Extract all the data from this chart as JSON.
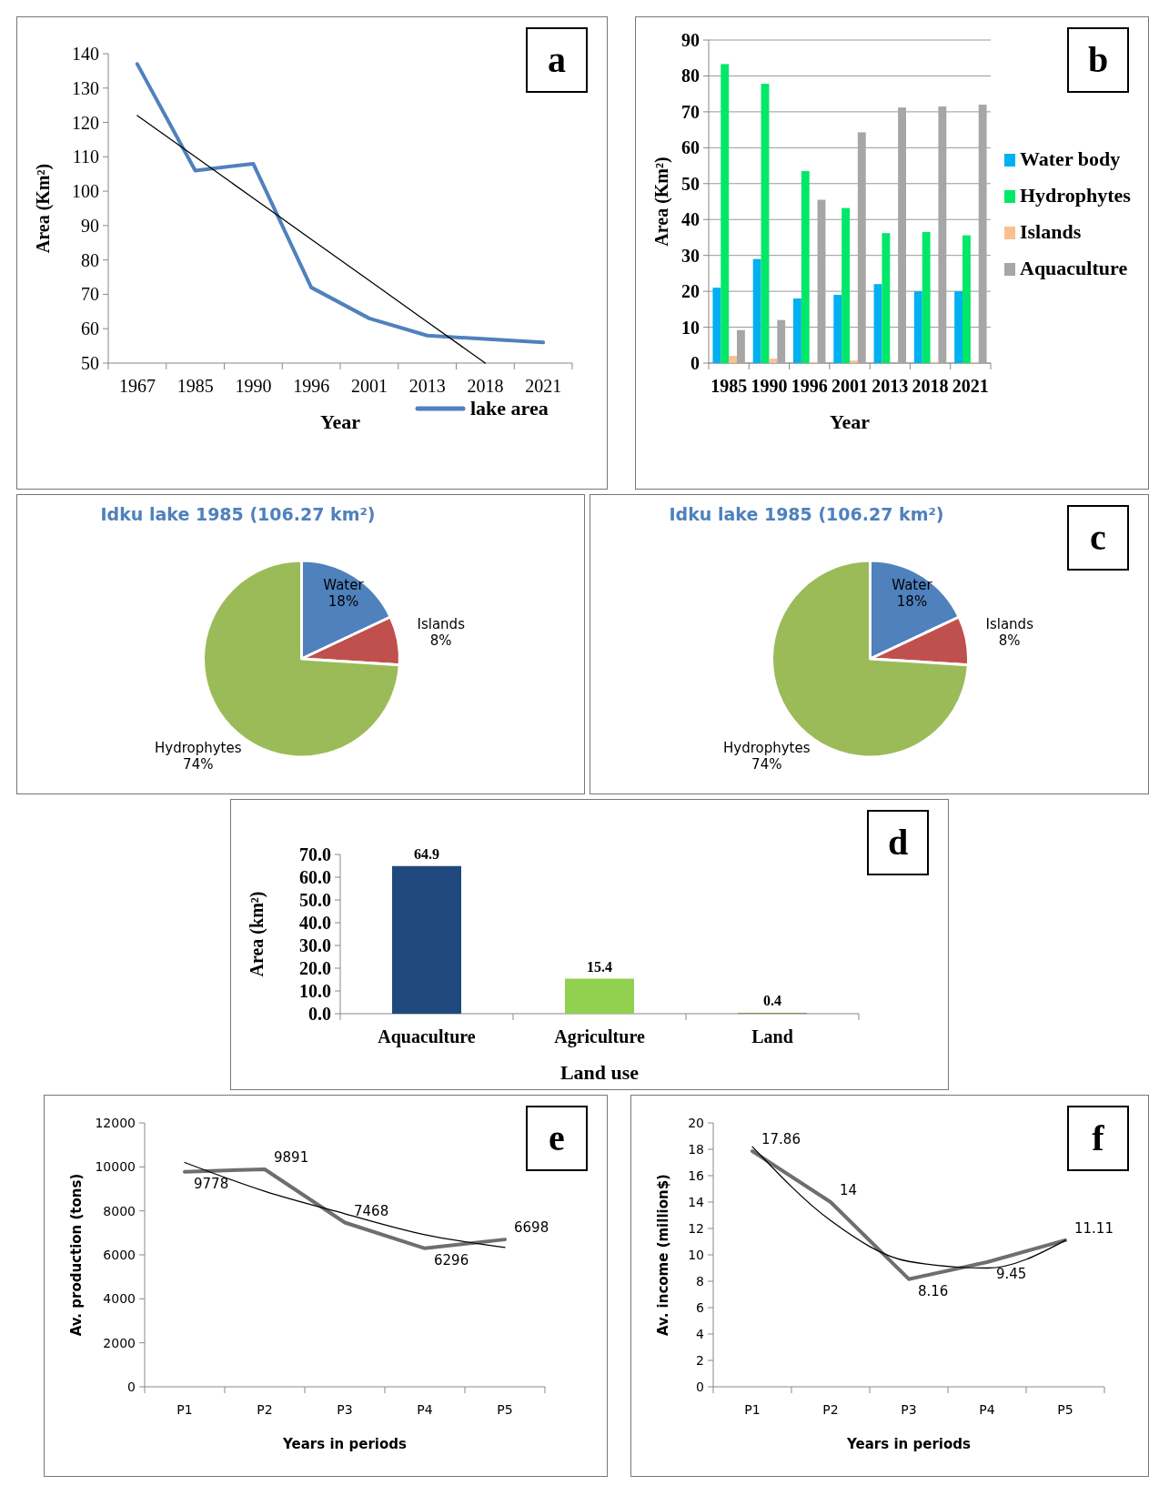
{
  "chart_data": [
    {
      "type": "line",
      "categories": [
        "1967",
        "1985",
        "1990",
        "1996",
        "2001",
        "2013",
        "2018",
        "2021"
      ],
      "xlabel": "Year",
      "ylabel": "Area (Km²)",
      "ylim": [
        50,
        140
      ],
      "yticks": [
        50,
        60,
        70,
        80,
        90,
        100,
        110,
        120,
        130,
        140
      ],
      "legend": "bottom",
      "annotations": [
        "a"
      ],
      "series": [
        {
          "name": "lake area",
          "color": "#4f81bd",
          "values": [
            137,
            106,
            108,
            72,
            63,
            58,
            57,
            56
          ]
        },
        {
          "color": "#000000",
          "values": [
            122,
            110,
            98,
            86,
            74,
            62,
            50,
            null
          ]
        }
      ]
    },
    {
      "type": "bar",
      "categories": [
        "1985",
        "1990",
        "1996",
        "2001",
        "2013",
        "2018",
        "2021"
      ],
      "xlabel": "Year",
      "ylabel": "Area (Km²)",
      "ylim": [
        0,
        90
      ],
      "yticks": [
        0,
        10,
        20,
        30,
        40,
        50,
        60,
        70,
        80,
        90
      ],
      "grid": "y",
      "legend": "right",
      "annotations": [
        "b"
      ],
      "series": [
        {
          "name": "Water body",
          "color": "#00b0f0",
          "values": [
            21,
            29,
            18,
            19,
            22,
            20,
            20
          ]
        },
        {
          "name": "Hydrophytes",
          "color": "#00e868",
          "values": [
            83.3,
            77.8,
            53.5,
            43.2,
            36.2,
            36.5,
            35.6
          ]
        },
        {
          "name": "Islands",
          "color": "#fac090",
          "values": [
            2,
            1.2,
            0.3,
            0.7,
            0,
            0.3,
            0.3
          ]
        },
        {
          "name": "Aquaculture",
          "color": "#a6a6a6",
          "values": [
            9.2,
            12,
            45.5,
            64.3,
            71.2,
            71.5,
            72
          ]
        }
      ]
    },
    {
      "type": "pie",
      "title": "Idku lake 1985 (106.27 km²)",
      "categories": [
        "Water",
        "Islands",
        "Hydrophytes"
      ],
      "values": [
        18,
        8,
        74
      ],
      "value_labels": [
        "18%",
        "8%",
        "74%"
      ],
      "colors": [
        "#4f81bd",
        "#c0504d",
        "#9bbb59"
      ]
    },
    {
      "type": "pie",
      "title": "Idku lake 1985 (106.27 km²)",
      "categories": [
        "Water",
        "Islands",
        "Hydrophytes"
      ],
      "values": [
        18,
        8,
        74
      ],
      "value_labels": [
        "18%",
        "8%",
        "74%"
      ],
      "colors": [
        "#4f81bd",
        "#c0504d",
        "#9bbb59"
      ],
      "annotations": [
        "c"
      ]
    },
    {
      "type": "bar",
      "categories": [
        "Aquaculture",
        "Agriculture",
        "Land"
      ],
      "values": [
        64.9,
        15.4,
        0.4
      ],
      "colors": [
        "#1f497d",
        "#92d050",
        "#948a54"
      ],
      "data_labels": true,
      "xlabel": "Land use",
      "ylabel": "Area (km²)",
      "ylim": [
        0,
        70
      ],
      "yticks": [
        {
          "value": 0,
          "label": "0.0"
        },
        {
          "value": 10,
          "label": "10.0"
        },
        {
          "value": 20,
          "label": "20.0"
        },
        {
          "value": 30,
          "label": "30.0"
        },
        {
          "value": 40,
          "label": "40.0"
        },
        {
          "value": 50,
          "label": "50.0"
        },
        {
          "value": 60,
          "label": "60.0"
        },
        {
          "value": 70,
          "label": "70.0"
        }
      ],
      "annotations": [
        "d"
      ]
    },
    {
      "type": "line",
      "categories": [
        "P1",
        "P2",
        "P3",
        "P4",
        "P5"
      ],
      "xlabel": "Years in periods",
      "ylabel": "Av. production  (tons)",
      "ylim": [
        0,
        12000
      ],
      "yticks": [
        0,
        2000,
        4000,
        6000,
        8000,
        10000,
        12000
      ],
      "annotations": [
        "e"
      ],
      "series": [
        {
          "color": "#6e6e6e",
          "values": [
            9778,
            9891,
            7468,
            6296,
            6698
          ],
          "data_labels": true
        },
        {
          "color": "#000000",
          "values": [
            10200,
            8890,
            7870,
            6920,
            6340
          ]
        }
      ]
    },
    {
      "type": "line",
      "categories": [
        "P1",
        "P2",
        "P3",
        "P4",
        "P5"
      ],
      "xlabel": "Years in periods",
      "ylabel": "Av. income  (million$)",
      "ylim": [
        0,
        20
      ],
      "yticks": [
        0,
        2,
        4,
        6,
        8,
        10,
        12,
        14,
        16,
        18,
        20
      ],
      "annotations": [
        "f"
      ],
      "series": [
        {
          "color": "#6e6e6e",
          "values": [
            17.86,
            14,
            8.16,
            9.45,
            11.11
          ],
          "data_labels": true
        },
        {
          "color": "#000000",
          "values": [
            18.2,
            12.6,
            9.5,
            9.0,
            11.1
          ]
        }
      ]
    }
  ]
}
